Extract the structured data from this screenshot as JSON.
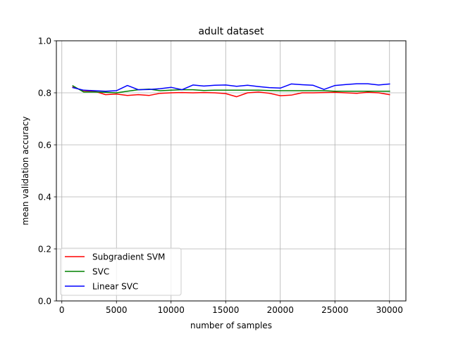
{
  "chart_data": {
    "type": "line",
    "title": "adult dataset",
    "xlabel": "number of samples",
    "ylabel": "mean validation accuracy",
    "xlim": [
      -500,
      31500
    ],
    "ylim": [
      0.0,
      1.0
    ],
    "xticks": [
      0,
      5000,
      10000,
      15000,
      20000,
      25000,
      30000
    ],
    "xtick_labels": [
      "0",
      "5000",
      "10000",
      "15000",
      "20000",
      "25000",
      "30000"
    ],
    "yticks": [
      0.0,
      0.2,
      0.4,
      0.6,
      0.8,
      1.0
    ],
    "ytick_labels": [
      "0.0",
      "0.2",
      "0.4",
      "0.6",
      "0.8",
      "1.0"
    ],
    "grid": true,
    "legend_position": "lower-left",
    "x": [
      1000,
      2000,
      3000,
      4000,
      5000,
      6000,
      7000,
      8000,
      9000,
      10000,
      11000,
      12000,
      13000,
      14000,
      15000,
      16000,
      17000,
      18000,
      19000,
      20000,
      21000,
      22000,
      23000,
      24000,
      25000,
      26000,
      27000,
      28000,
      29000,
      30000
    ],
    "series": [
      {
        "name": "Subgradient SVM",
        "color": "#ff0000",
        "values": [
          0.822,
          0.808,
          0.806,
          0.793,
          0.795,
          0.79,
          0.793,
          0.79,
          0.798,
          0.8,
          0.801,
          0.8,
          0.801,
          0.8,
          0.797,
          0.785,
          0.8,
          0.803,
          0.798,
          0.789,
          0.791,
          0.8,
          0.8,
          0.801,
          0.802,
          0.8,
          0.798,
          0.802,
          0.8,
          0.793
        ]
      },
      {
        "name": "SVC",
        "color": "#008000",
        "values": [
          0.827,
          0.803,
          0.803,
          0.802,
          0.8,
          0.806,
          0.812,
          0.814,
          0.808,
          0.81,
          0.812,
          0.812,
          0.809,
          0.81,
          0.81,
          0.81,
          0.81,
          0.81,
          0.809,
          0.808,
          0.808,
          0.808,
          0.808,
          0.808,
          0.806,
          0.806,
          0.806,
          0.806,
          0.806,
          0.806
        ]
      },
      {
        "name": "Linear SVC",
        "color": "#0000ff",
        "values": [
          0.82,
          0.81,
          0.808,
          0.806,
          0.808,
          0.828,
          0.812,
          0.813,
          0.816,
          0.821,
          0.812,
          0.83,
          0.826,
          0.829,
          0.83,
          0.825,
          0.829,
          0.824,
          0.82,
          0.818,
          0.834,
          0.831,
          0.829,
          0.813,
          0.828,
          0.832,
          0.835,
          0.835,
          0.83,
          0.834
        ]
      }
    ]
  }
}
